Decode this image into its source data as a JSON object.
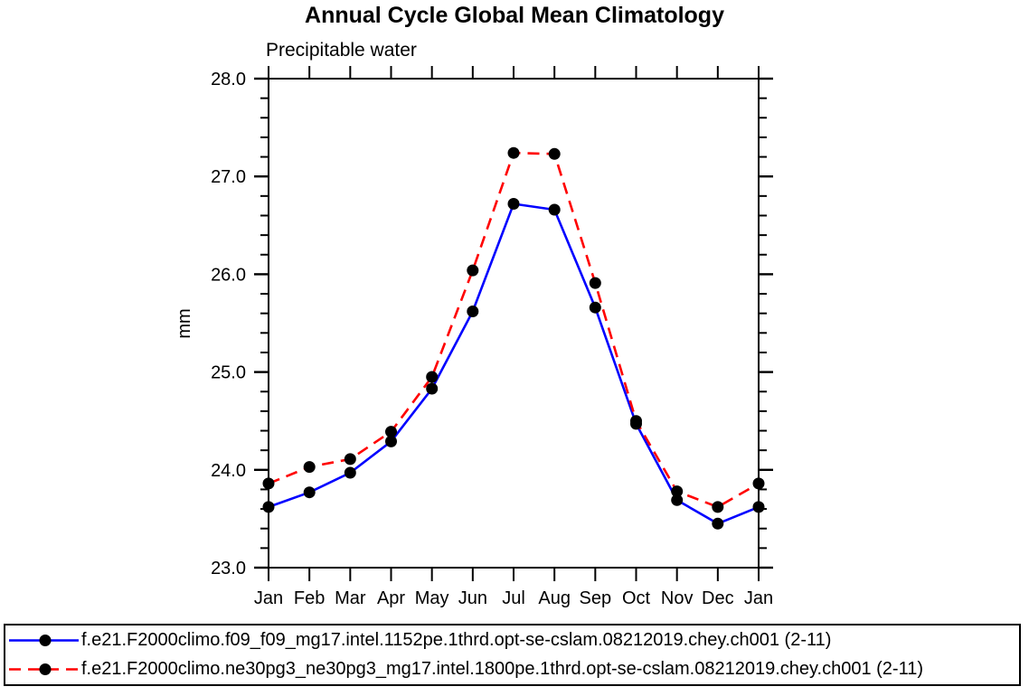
{
  "chart_data": {
    "type": "line",
    "title": "Annual Cycle Global Mean Climatology",
    "subtitle": "Precipitable water",
    "ylabel": "mm",
    "x_tick_labels": [
      "Jan",
      "Feb",
      "Mar",
      "Apr",
      "May",
      "Jun",
      "Jul",
      "Aug",
      "Sep",
      "Oct",
      "Nov",
      "Dec",
      "Jan"
    ],
    "ylim": [
      23.0,
      28.0
    ],
    "y_major_ticks": [
      23.0,
      24.0,
      25.0,
      26.0,
      27.0,
      28.0
    ],
    "y_minor_step": 0.2,
    "grid": "off",
    "legend_position": "bottom",
    "axis_color": "#000000",
    "marker": {
      "shape": "circle",
      "color": "#000000",
      "radius": 6.5
    },
    "series": [
      {
        "name": "f.e21.F2000climo.f09_f09_mg17.intel.1152pe.1thrd.opt-se-cslam.08212019.chey.ch001 (2-11)",
        "color": "#0000ff",
        "style": "solid",
        "values": [
          23.62,
          23.77,
          23.97,
          24.29,
          24.83,
          25.62,
          26.72,
          26.66,
          25.66,
          24.47,
          23.69,
          23.45,
          23.62
        ]
      },
      {
        "name": "f.e21.F2000climo.ne30pg3_ne30pg3_mg17.intel.1800pe.1thrd.opt-se-cslam.08212019.chey.ch001 (2-11)",
        "color": "#ff0000",
        "style": "dashed",
        "values": [
          23.86,
          24.03,
          24.11,
          24.39,
          24.95,
          26.04,
          27.24,
          27.23,
          25.91,
          24.5,
          23.78,
          23.62,
          23.86
        ]
      }
    ]
  }
}
